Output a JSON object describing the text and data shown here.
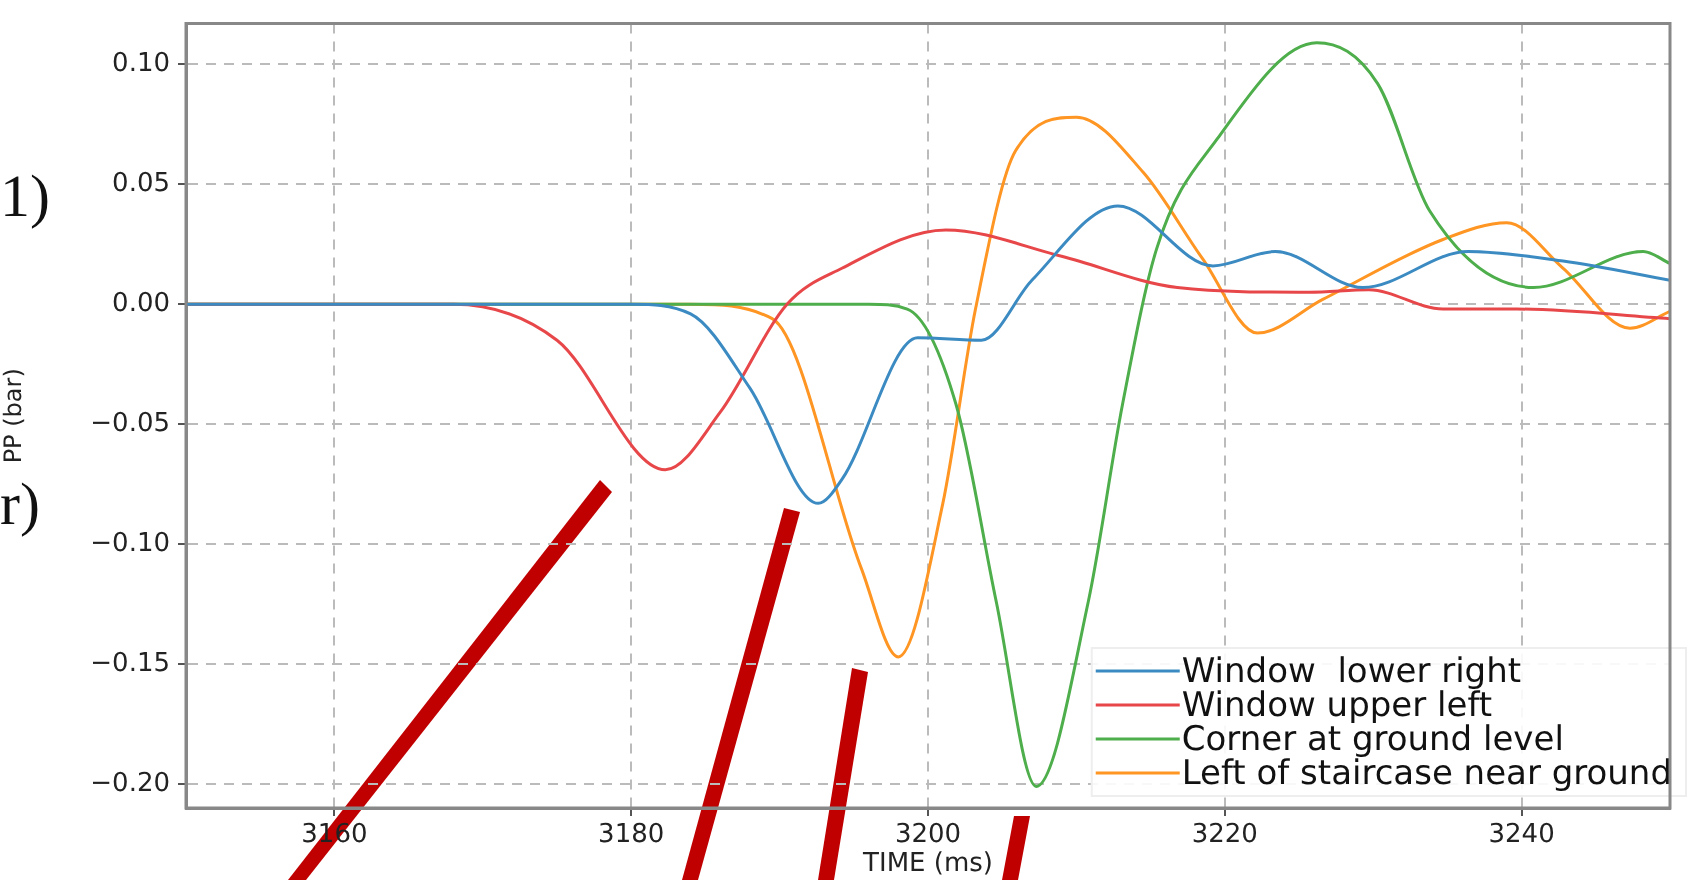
{
  "chart_data": {
    "type": "line",
    "xlabel": "TIME (ms)",
    "ylabel": "PP (bar)",
    "annotations": [
      "1)",
      "r)"
    ],
    "xlim": [
      3150,
      3250
    ],
    "xticks": [
      3160,
      3180,
      3200,
      3220,
      3240
    ],
    "ylim": [
      -0.21,
      0.117
    ],
    "yticks": [
      {
        "value": -0.2,
        "label": "−0.20"
      },
      {
        "value": -0.15,
        "label": "−0.15"
      },
      {
        "value": -0.1,
        "label": "−0.10"
      },
      {
        "value": -0.05,
        "label": "−0.05"
      },
      {
        "value": 0,
        "label": "0.00"
      },
      {
        "value": 0.05,
        "label": "0.05"
      },
      {
        "value": 0.1,
        "label": "0.10"
      }
    ],
    "grid": true,
    "legend": "bottom right",
    "line_style": "solid",
    "marker": "none",
    "series": [
      {
        "name": "Window  lower right",
        "color": "#3b8bc2",
        "x": [
          3150,
          3180,
          3184,
          3188,
          3192.6,
          3194.2,
          3199.3,
          3203.6,
          3207,
          3212.8,
          3219.2,
          3223.4,
          3229.3,
          3236.4,
          3242.8,
          3250
        ],
        "values": [
          0,
          0,
          -0.004,
          -0.035,
          -0.083,
          -0.073,
          -0.014,
          -0.015,
          0.01,
          0.041,
          0.016,
          0.022,
          0.007,
          0.022,
          0.018,
          0.01
        ]
      },
      {
        "name": "Window upper left",
        "color": "#e8474a",
        "x": [
          3150,
          3168,
          3175,
          3182.3,
          3186,
          3190.5,
          3194.2,
          3201.2,
          3209,
          3216.8,
          3225.7,
          3229.7,
          3234.7,
          3239.7,
          3250
        ],
        "values": [
          0,
          0,
          -0.015,
          -0.069,
          -0.045,
          0,
          0.015,
          0.031,
          0.02,
          0.007,
          0.005,
          0.006,
          -0.002,
          -0.002,
          -0.006
        ]
      },
      {
        "name": "Corner at ground level",
        "color": "#4eae4b",
        "x": [
          3150,
          3196,
          3198.6,
          3201.9,
          3204.6,
          3207.3,
          3210.8,
          3213.1,
          3215.4,
          3219.5,
          3226.2,
          3230.3,
          3233.8,
          3240.8,
          3248.2,
          3250
        ],
        "values": [
          0,
          0,
          -0.002,
          -0.042,
          -0.124,
          -0.201,
          -0.124,
          -0.042,
          0.023,
          0.069,
          0.109,
          0.092,
          0.039,
          0.007,
          0.022,
          0.017
        ]
      },
      {
        "name": "Left of staircase near ground",
        "color": "#ff9522",
        "x": [
          3150,
          3184,
          3189.5,
          3195.5,
          3198,
          3201,
          3203.2,
          3205.9,
          3210,
          3214.5,
          3218.5,
          3222.2,
          3226.6,
          3234.7,
          3239,
          3242.8,
          3247.3,
          3250
        ],
        "values": [
          0,
          0,
          -0.006,
          -0.11,
          -0.147,
          -0.083,
          -0.002,
          0.064,
          0.078,
          0.055,
          0.019,
          -0.012,
          0.002,
          0.027,
          0.034,
          0.015,
          -0.01,
          -0.003
        ]
      }
    ]
  }
}
